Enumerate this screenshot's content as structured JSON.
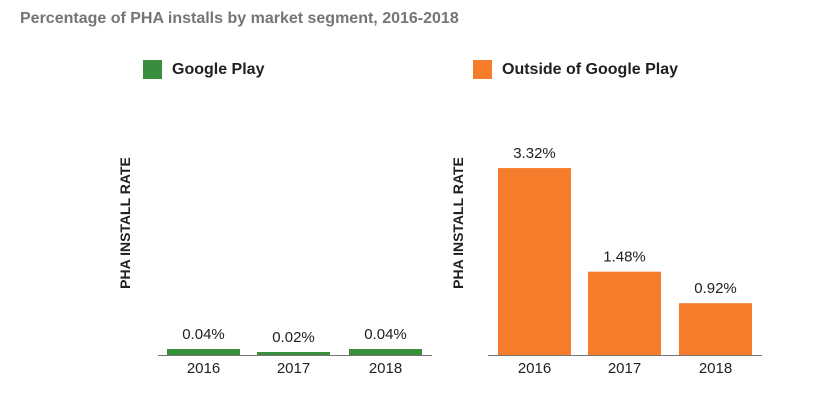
{
  "title": "Percentage of PHA installs by market segment, 2016-2018",
  "chart_data": [
    {
      "type": "bar",
      "legend": "Google Play",
      "color": "#388e3c",
      "categories": [
        "2016",
        "2017",
        "2018"
      ],
      "values": [
        0.04,
        0.02,
        0.04
      ],
      "data_labels": [
        "0.04%",
        "0.02%",
        "0.04%"
      ],
      "ylabel": "PHA INSTALL RATE",
      "legend_position": "top",
      "grid": false
    },
    {
      "type": "bar",
      "legend": "Outside of Google Play",
      "color": "#f57c2b",
      "categories": [
        "2016",
        "2017",
        "2018"
      ],
      "values": [
        3.32,
        1.48,
        0.92
      ],
      "data_labels": [
        "3.32%",
        "1.48%",
        "0.92%"
      ],
      "ylabel": "PHA INSTALL RATE",
      "legend_position": "top",
      "grid": false
    }
  ]
}
